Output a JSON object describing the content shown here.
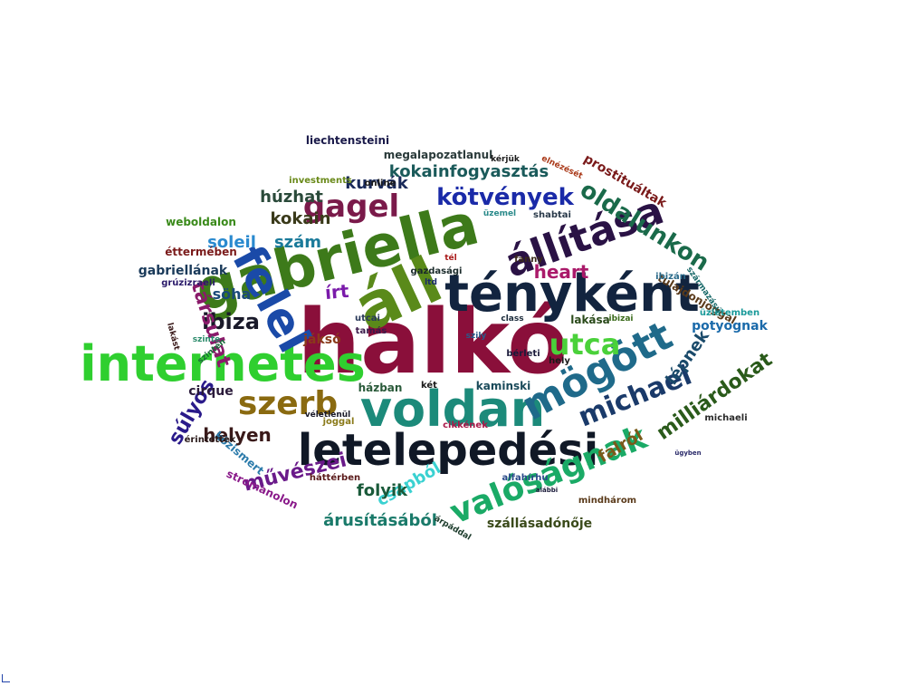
{
  "words": [
    {
      "text": "halkó",
      "color": "#8a0f3a"
    },
    {
      "text": "gabriella",
      "color": "#3d7a1a"
    },
    {
      "text": "tényként",
      "color": "#12243f"
    },
    {
      "text": "áll",
      "color": "#5a8a1a"
    },
    {
      "text": "internetes",
      "color": "#2fcf2f"
    },
    {
      "text": "voldan",
      "color": "#1c8a7a"
    },
    {
      "text": "letelepedési",
      "color": "#101826"
    },
    {
      "text": "felel",
      "color": "#1a4aa8"
    },
    {
      "text": "mögött",
      "color": "#1f6a8a"
    },
    {
      "text": "állítása",
      "color": "#2a1245"
    },
    {
      "text": "valóságnak",
      "color": "#1aaa66"
    },
    {
      "text": "szerb",
      "color": "#8a6a10"
    },
    {
      "text": "gagel",
      "color": "#7a1a4a"
    },
    {
      "text": "michael",
      "color": "#1a3a6a"
    },
    {
      "text": "kötvények",
      "color": "#1a2aa8"
    },
    {
      "text": "utca",
      "color": "#4ad13a"
    },
    {
      "text": "oldalunkon",
      "color": "#1a6a4a"
    },
    {
      "text": "milliárdokat",
      "color": "#2a5a1a"
    },
    {
      "text": "ibiza",
      "color": "#1a1a2a"
    },
    {
      "text": "kokainfogyasztás",
      "color": "#1a5a5a"
    },
    {
      "text": "társulat",
      "color": "#8a1a6a"
    },
    {
      "text": "súlyos",
      "color": "#2a1a8a"
    },
    {
      "text": "művészei",
      "color": "#6a1a8a"
    },
    {
      "text": "helyen",
      "color": "#3a1a1a"
    },
    {
      "text": "lépnek",
      "color": "#1a4a6a"
    },
    {
      "text": "csapból",
      "color": "#3ad1d1"
    },
    {
      "text": "folyik",
      "color": "#1a5a3a"
    },
    {
      "text": "árusításából",
      "color": "#1a7a6a"
    },
    {
      "text": "szállásadónője",
      "color": "#3a4a1a"
    },
    {
      "text": "heart",
      "color": "#aa1a6a"
    },
    {
      "text": "falról",
      "color": "#7a5a1a"
    },
    {
      "text": "kokain",
      "color": "#3a3a1a"
    },
    {
      "text": "húzhat",
      "color": "#2a4a3a"
    },
    {
      "text": "kurvák",
      "color": "#1a2a5a"
    },
    {
      "text": "szám",
      "color": "#1a7a9a"
    },
    {
      "text": "soleil",
      "color": "#2a8acf"
    },
    {
      "text": "söha",
      "color": "#1a4a7a"
    },
    {
      "text": "írt",
      "color": "#7a1aaa"
    },
    {
      "text": "gabriellának",
      "color": "#1a3a5a"
    },
    {
      "text": "cirque",
      "color": "#2a1a3a"
    },
    {
      "text": "megalapozatlanul",
      "color": "#2a3a3a"
    },
    {
      "text": "prostituáltak",
      "color": "#7a1a1a"
    },
    {
      "text": "potyognak",
      "color": "#1a6aaa"
    },
    {
      "text": "lakása",
      "color": "#2a4a1a"
    },
    {
      "text": "liechtensteini",
      "color": "#1a1a4a"
    },
    {
      "text": "kaminski",
      "color": "#1a4a5a"
    },
    {
      "text": "házban",
      "color": "#2a5a3a"
    },
    {
      "text": "jáksó",
      "color": "#8a3a1a"
    },
    {
      "text": "éttermében",
      "color": "#7a1a1a"
    },
    {
      "text": "weboldalon",
      "color": "#3a8a1a"
    },
    {
      "text": "tulajdonjoggal",
      "color": "#5a3a1a"
    },
    {
      "text": "üzletemben",
      "color": "#1a9a9a"
    },
    {
      "text": "michaeli",
      "color": "#2a2a2a"
    },
    {
      "text": "mindhárom",
      "color": "#5a3a1a"
    },
    {
      "text": "stromanolon",
      "color": "#8a1a8a"
    },
    {
      "text": "közismert",
      "color": "#2a7aaa"
    },
    {
      "text": "érintettek",
      "color": "#2a1a1a"
    },
    {
      "text": "grúzizraeli",
      "color": "#2a1a6a"
    },
    {
      "text": "investments",
      "color": "#6a8a1a"
    },
    {
      "text": "online",
      "color": "#1a1a1a"
    },
    {
      "text": "gazdasági",
      "color": "#1a2a2a"
    },
    {
      "text": "cikkének",
      "color": "#aa1a4a"
    },
    {
      "text": "joggal",
      "color": "#8a7a1a"
    },
    {
      "text": "alfahírhu",
      "color": "#2a4a8a"
    },
    {
      "text": "háttérben",
      "color": "#5a1a1a"
    },
    {
      "text": "bérleti",
      "color": "#1a1a3a"
    },
    {
      "text": "tamás",
      "color": "#3a1a4a"
    },
    {
      "text": "utcai",
      "color": "#2a3a5a"
    },
    {
      "text": "fanny",
      "color": "#3a2a1a"
    },
    {
      "text": "ibizán",
      "color": "#2a6a8a"
    },
    {
      "text": "hely",
      "color": "#1a1a1a"
    },
    {
      "text": "két",
      "color": "#1a1a1a"
    },
    {
      "text": "shabtai",
      "color": "#2a3a4a"
    },
    {
      "text": "származású",
      "color": "#1a6a6a"
    },
    {
      "text": "kérjük",
      "color": "#1a1a1a"
    },
    {
      "text": "üzemel",
      "color": "#2a8a8a"
    },
    {
      "text": "szinte",
      "color": "#2a8a6a"
    },
    {
      "text": "class",
      "color": "#1a2a3a"
    },
    {
      "text": "ibizai",
      "color": "#3a6a1a"
    },
    {
      "text": "lakást",
      "color": "#3a1a1a"
    },
    {
      "text": "szintén",
      "color": "#1a6a3a"
    },
    {
      "text": "ltd",
      "color": "#1a2a6a"
    },
    {
      "text": "szily",
      "color": "#2a5a8a"
    },
    {
      "text": "véletlenül",
      "color": "#1a1a2a"
    },
    {
      "text": "árpáddal",
      "color": "#1a3a2a"
    },
    {
      "text": "elnézését",
      "color": "#aa3a1a"
    },
    {
      "text": "tél",
      "color": "#aa1a1a"
    },
    {
      "text": "alábbi",
      "color": "#1a1a3a"
    },
    {
      "text": "ügyben",
      "color": "#2a2a6a"
    }
  ]
}
